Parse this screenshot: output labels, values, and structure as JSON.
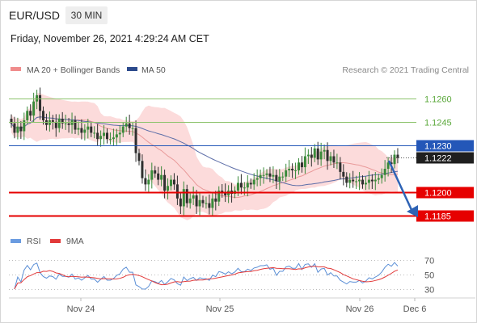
{
  "header": {
    "symbol": "EUR/USD",
    "timeframe": "30 MIN",
    "datetime": "Friday, November 26, 2021 4:29:24 AM CET"
  },
  "legend": {
    "ma20_bb": "MA 20 + Bollinger Bands",
    "ma50": "MA 50",
    "credit": "Research © 2021 Trading Central"
  },
  "levels": [
    {
      "label": "1.1260",
      "value": 1.126,
      "style": "thin-green"
    },
    {
      "label": "1.1245",
      "value": 1.1245,
      "style": "thin-green"
    },
    {
      "label": "1.1230",
      "value": 1.123,
      "style": "blue"
    },
    {
      "label": "1.1222",
      "value": 1.1222,
      "style": "current"
    },
    {
      "label": "1.1200",
      "value": 1.12,
      "style": "red"
    },
    {
      "label": "1.1185",
      "value": 1.1185,
      "style": "red"
    }
  ],
  "rsi_panel": {
    "legend_rsi": "RSI",
    "legend_9ma": "9MA",
    "ticks": [
      "70",
      "50",
      "30"
    ]
  },
  "xaxis": {
    "ticks": [
      "Nov 24",
      "Nov 25",
      "Nov 26",
      "Dec 6"
    ]
  },
  "colors": {
    "candle_up": "#3a8a3a",
    "candle_down": "#2f2f2f",
    "bb_fill": "#fbd5d5",
    "ma20": "#e99a9a",
    "ma50": "#5d6ea8",
    "support": "#e60000",
    "resistance_blue": "#2457b8",
    "green_line": "#8cc36b",
    "arrow": "#2e63b5",
    "rsi": "#5b8fd6",
    "rsi_ma": "#e23a3a"
  },
  "chart_data": {
    "type": "candlestick",
    "ylim": [
      1.1177,
      1.1273
    ],
    "close_series": [
      1.1244,
      1.1238,
      1.1242,
      1.1239,
      1.1246,
      1.1252,
      1.1249,
      1.1258,
      1.1262,
      1.1252,
      1.1246,
      1.1243,
      1.1246,
      1.1245,
      1.1241,
      1.1247,
      1.1244,
      1.1244,
      1.1243,
      1.1246,
      1.124,
      1.1241,
      1.1238,
      1.124,
      1.1242,
      1.1238,
      1.1238,
      1.1234,
      1.1236,
      1.1238,
      1.1234,
      1.1234,
      1.1235,
      1.1237,
      1.1238,
      1.1242,
      1.1244,
      1.1241,
      1.1241,
      1.1225,
      1.122,
      1.1209,
      1.1205,
      1.1208,
      1.1214,
      1.1212,
      1.1208,
      1.1211,
      1.1201,
      1.1204,
      1.1208,
      1.1205,
      1.1196,
      1.1191,
      1.1202,
      1.1193,
      1.1196,
      1.1198,
      1.1191,
      1.1195,
      1.1193,
      1.1193,
      1.119,
      1.1196,
      1.1194,
      1.1201,
      1.12,
      1.1198,
      1.1201,
      1.1199,
      1.1201,
      1.1206,
      1.1203,
      1.1203,
      1.1206,
      1.1205,
      1.1208,
      1.1209,
      1.1211,
      1.1211,
      1.1212,
      1.121,
      1.1211,
      1.1207,
      1.121,
      1.121,
      1.1214,
      1.1215,
      1.1214,
      1.1214,
      1.1219,
      1.1216,
      1.1223,
      1.1224,
      1.1222,
      1.1228,
      1.1221,
      1.1226,
      1.1227,
      1.122,
      1.1223,
      1.1219,
      1.1219,
      1.1213,
      1.121,
      1.1206,
      1.1208,
      1.1207,
      1.1207,
      1.1208,
      1.1205,
      1.1206,
      1.1208,
      1.1207,
      1.1208,
      1.1209,
      1.1211,
      1.1215,
      1.1219,
      1.1218,
      1.1224,
      1.1222
    ],
    "last_price": 1.1222,
    "rsi_ylim": [
      20,
      80
    ],
    "rsi_levels": [
      70,
      50,
      30
    ]
  }
}
